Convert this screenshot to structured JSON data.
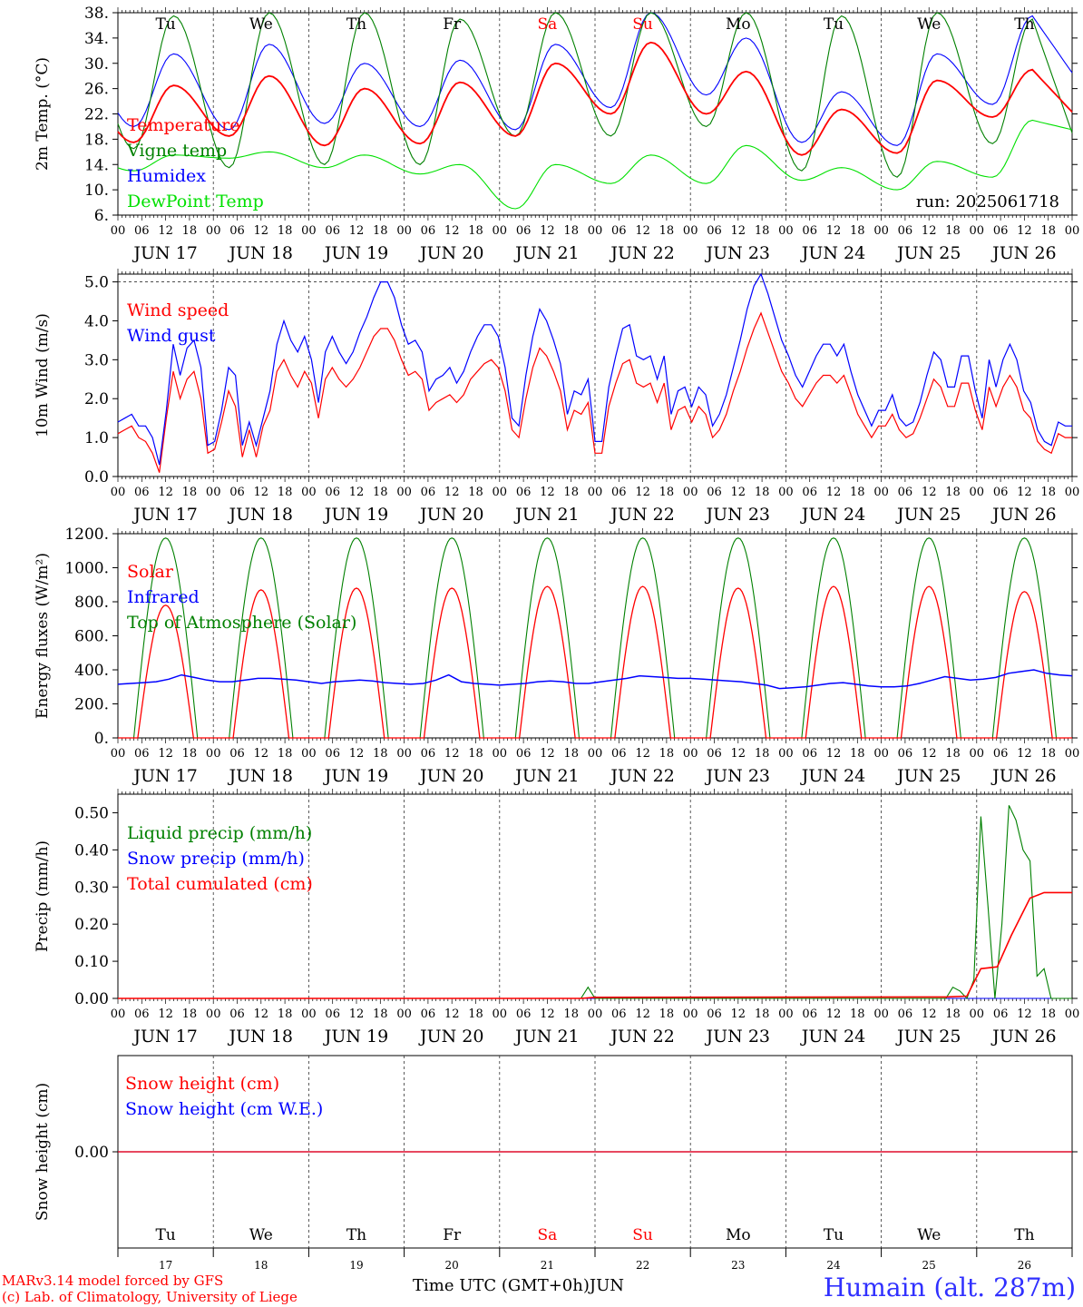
{
  "chart_data": [
    {
      "type": "line",
      "ylabel": "2m Temp. (°C)",
      "ylim": [
        6,
        38
      ],
      "yticks": [
        "6.",
        "10.",
        "14.",
        "18.",
        "22.",
        "26.",
        "30.",
        "34.",
        "38."
      ],
      "ytick_values": [
        6,
        10,
        14,
        18,
        22,
        26,
        30,
        34,
        38
      ],
      "run_label": "run: 2025061718",
      "series": [
        {
          "name": "Temperature",
          "color": "#ff0000",
          "daily_min": [
            17.5,
            18.5,
            17.0,
            17.3,
            18.5,
            22.0,
            22.0,
            15.5,
            15.8,
            21.5
          ],
          "daily_max": [
            26.5,
            28.0,
            26.0,
            27.0,
            30.0,
            33.3,
            28.7,
            22.7,
            27.3,
            29.0
          ],
          "end": 22.3
        },
        {
          "name": "Vigne temp",
          "color": "#008000",
          "daily_min": [
            16.5,
            13.5,
            14.0,
            14.0,
            18.5,
            18.5,
            20.0,
            13.0,
            12.0,
            17.3
          ],
          "daily_max": [
            37.5,
            38.0,
            38.0,
            37.0,
            38.0,
            38.0,
            38.0,
            37.5,
            38.0,
            37.0
          ],
          "end": 19.0
        },
        {
          "name": "Humidex",
          "color": "#0000ff",
          "daily_min": [
            20.0,
            19.5,
            20.5,
            20.0,
            19.5,
            23.0,
            25.0,
            17.5,
            17.0,
            23.5
          ],
          "daily_max": [
            31.5,
            33.0,
            30.0,
            30.5,
            33.0,
            38.0,
            34.0,
            25.5,
            31.5,
            37.5
          ],
          "end": 28.5
        },
        {
          "name": "DewPoint Temp",
          "color": "#00e000",
          "daily_min": [
            13.0,
            15.0,
            13.5,
            12.5,
            7.0,
            11.0,
            11.0,
            11.5,
            10.0,
            12.0
          ],
          "daily_max": [
            15.5,
            16.0,
            15.5,
            14.0,
            14.0,
            15.5,
            17.0,
            13.5,
            14.5,
            21.0
          ],
          "end": 19.5
        }
      ]
    },
    {
      "type": "line",
      "ylabel": "10m Wind (m/s)",
      "ylim": [
        0,
        5.2
      ],
      "yticks": [
        "0.0",
        "1.0",
        "2.0",
        "3.0",
        "4.0",
        "5.0"
      ],
      "ytick_values": [
        0,
        1,
        2,
        3,
        4,
        5
      ],
      "reference_line": 5.0,
      "series": [
        {
          "name": "Wind speed",
          "color": "#ff0000",
          "values": [
            1.1,
            1.2,
            1.3,
            1.0,
            0.9,
            0.6,
            0.1,
            1.5,
            2.7,
            2.0,
            2.5,
            2.7,
            2.0,
            0.6,
            0.7,
            1.4,
            2.2,
            1.8,
            0.5,
            1.2,
            0.5,
            1.3,
            1.7,
            2.7,
            3.0,
            2.6,
            2.3,
            2.7,
            2.4,
            1.5,
            2.5,
            2.8,
            2.5,
            2.3,
            2.5,
            2.8,
            3.2,
            3.6,
            3.8,
            3.8,
            3.5,
            3.0,
            2.6,
            2.7,
            2.5,
            1.7,
            1.9,
            2.0,
            2.1,
            1.9,
            2.1,
            2.5,
            2.7,
            2.9,
            3.0,
            2.8,
            2.2,
            1.2,
            1.0,
            2.0,
            2.8,
            3.3,
            3.1,
            2.7,
            2.2,
            1.2,
            1.7,
            1.6,
            1.9,
            0.6,
            0.6,
            1.8,
            2.4,
            2.9,
            3.0,
            2.4,
            2.3,
            2.4,
            1.9,
            2.4,
            1.2,
            1.7,
            1.8,
            1.4,
            1.8,
            1.6,
            1.0,
            1.2,
            1.6,
            2.2,
            2.7,
            3.3,
            3.8,
            4.2,
            3.7,
            3.2,
            2.7,
            2.4,
            2.0,
            1.8,
            2.1,
            2.4,
            2.6,
            2.6,
            2.4,
            2.6,
            2.1,
            1.6,
            1.3,
            1.0,
            1.3,
            1.3,
            1.6,
            1.2,
            1.0,
            1.1,
            1.5,
            2.0,
            2.5,
            2.3,
            1.8,
            1.8,
            2.4,
            2.4,
            1.7,
            1.2,
            2.3,
            1.8,
            2.3,
            2.6,
            2.3,
            1.7,
            1.5,
            0.9,
            0.7,
            0.6,
            1.1,
            1.0,
            1.0
          ]
        },
        {
          "name": "Wind gust",
          "color": "#0000ff",
          "values": [
            1.4,
            1.5,
            1.6,
            1.3,
            1.3,
            1.0,
            0.3,
            1.7,
            3.4,
            2.6,
            3.3,
            3.5,
            2.8,
            0.8,
            0.9,
            1.7,
            2.8,
            2.6,
            0.8,
            1.4,
            0.8,
            1.5,
            2.2,
            3.4,
            4.0,
            3.5,
            3.2,
            3.6,
            3.0,
            1.9,
            3.2,
            3.6,
            3.2,
            2.9,
            3.2,
            3.7,
            4.1,
            4.6,
            5.0,
            5.0,
            4.6,
            3.9,
            3.4,
            3.5,
            3.2,
            2.2,
            2.5,
            2.6,
            2.8,
            2.4,
            2.7,
            3.2,
            3.6,
            3.9,
            3.9,
            3.6,
            2.8,
            1.5,
            1.3,
            2.6,
            3.6,
            4.3,
            4.0,
            3.5,
            2.9,
            1.6,
            2.2,
            2.1,
            2.5,
            0.9,
            0.9,
            2.3,
            3.1,
            3.8,
            3.9,
            3.1,
            3.0,
            3.1,
            2.5,
            3.1,
            1.6,
            2.2,
            2.3,
            1.8,
            2.3,
            2.1,
            1.3,
            1.6,
            2.1,
            2.8,
            3.5,
            4.3,
            4.9,
            5.4,
            4.7,
            4.1,
            3.5,
            3.1,
            2.6,
            2.3,
            2.7,
            3.1,
            3.4,
            3.4,
            3.1,
            3.4,
            2.7,
            2.1,
            1.7,
            1.3,
            1.7,
            1.7,
            2.1,
            1.5,
            1.3,
            1.4,
            1.9,
            2.6,
            3.2,
            3.0,
            2.3,
            2.3,
            3.1,
            3.1,
            2.2,
            1.5,
            3.0,
            2.3,
            3.0,
            3.4,
            3.0,
            2.2,
            1.9,
            1.2,
            0.9,
            0.8,
            1.4,
            1.3,
            1.3
          ]
        }
      ]
    },
    {
      "type": "line",
      "ylabel": "Energy fluxes (W/m²)",
      "ylim": [
        0,
        1200
      ],
      "yticks": [
        "0.",
        "200.",
        "400.",
        "600.",
        "800.",
        "1000.",
        "1200."
      ],
      "ytick_values": [
        0,
        200,
        400,
        600,
        800,
        1000,
        1200
      ],
      "series": [
        {
          "name": "Solar",
          "color": "#ff0000",
          "daily_peak": [
            780,
            870,
            880,
            880,
            890,
            890,
            880,
            890,
            890,
            860
          ]
        },
        {
          "name": "Infrared",
          "color": "#0000ff",
          "values": [
            315,
            320,
            325,
            330,
            345,
            370,
            355,
            340,
            330,
            330,
            340,
            350,
            350,
            345,
            340,
            330,
            320,
            330,
            335,
            340,
            335,
            325,
            320,
            315,
            320,
            340,
            370,
            330,
            320,
            315,
            310,
            315,
            320,
            330,
            335,
            330,
            320,
            320,
            330,
            340,
            350,
            365,
            360,
            355,
            350,
            350,
            345,
            340,
            335,
            330,
            320,
            310,
            290,
            295,
            300,
            310,
            320,
            325,
            315,
            305,
            300,
            300,
            305,
            320,
            340,
            360,
            350,
            340,
            345,
            355,
            380,
            390,
            400,
            380,
            370,
            365
          ]
        },
        {
          "name": "Top of Atmosphere (Solar)",
          "color": "#008000",
          "daily_peak": [
            1175,
            1175,
            1175,
            1175,
            1175,
            1175,
            1175,
            1175,
            1175,
            1175
          ]
        }
      ]
    },
    {
      "type": "line",
      "ylabel": "Precip (mm/h)",
      "ylim": [
        0,
        0.55
      ],
      "yticks": [
        "0.00",
        "0.10",
        "0.20",
        "0.30",
        "0.40",
        "0.50"
      ],
      "ytick_values": [
        0,
        0.1,
        0.2,
        0.3,
        0.4,
        0.5
      ],
      "series": [
        {
          "name": "Liquid precip (mm/h)",
          "color": "#008000",
          "points": [
            [
              0,
              0
            ],
            [
              198,
              0
            ],
            [
              201,
              0.03
            ],
            [
              204,
              0
            ],
            [
              354,
              0
            ],
            [
              357,
              0.03
            ],
            [
              360,
              0.02
            ],
            [
              363,
              0
            ],
            [
              366,
              0.05
            ],
            [
              369,
              0.49
            ],
            [
              372,
              0.25
            ],
            [
              375,
              0.0
            ],
            [
              378,
              0.2
            ],
            [
              381,
              0.52
            ],
            [
              384,
              0.48
            ],
            [
              387,
              0.4
            ],
            [
              390,
              0.37
            ],
            [
              393,
              0.06
            ],
            [
              396,
              0.08
            ],
            [
              399,
              0
            ],
            [
              408,
              0
            ]
          ]
        },
        {
          "name": "Snow precip (mm/h)",
          "color": "#0000ff",
          "points": [
            [
              0,
              0
            ],
            [
              408,
              0
            ]
          ]
        },
        {
          "name": "Total cumulated (cm)",
          "color": "#ff0000",
          "points": [
            [
              0,
              0
            ],
            [
              198,
              0
            ],
            [
              204,
              0.003
            ],
            [
              354,
              0.004
            ],
            [
              363,
              0.006
            ],
            [
              369,
              0.08
            ],
            [
              376,
              0.085
            ],
            [
              382,
              0.17
            ],
            [
              390,
              0.27
            ],
            [
              396,
              0.285
            ],
            [
              408,
              0.285
            ]
          ]
        }
      ]
    },
    {
      "type": "line",
      "ylabel": "Snow height (cm)",
      "yticks": [
        "0.00"
      ],
      "ytick_values": [
        0
      ],
      "series": [
        {
          "name": "Snow height (cm)",
          "color": "#ff0000",
          "values": [
            0,
            0
          ]
        },
        {
          "name": "Snow height (cm W.E.)",
          "color": "#0000ff",
          "values": [
            0,
            0
          ]
        }
      ]
    }
  ],
  "x_axis": {
    "hour_labels": [
      "00",
      "06",
      "12",
      "18"
    ],
    "end_label": "00",
    "dates": [
      "JUN 17",
      "JUN 18",
      "JUN 19",
      "JUN 20",
      "JUN 21",
      "JUN 22",
      "JUN 23",
      "JUN 24",
      "JUN 25",
      "JUN 26"
    ],
    "weekdays": [
      "Tu",
      "We",
      "Th",
      "Fr",
      "Sa",
      "Su",
      "Mo",
      "Tu",
      "We",
      "Th"
    ],
    "weekend_color": "#ff0000",
    "weekend_index": [
      4,
      5
    ],
    "day_numbers": [
      "17",
      "18",
      "19",
      "20",
      "21",
      "22",
      "23",
      "24",
      "25",
      "26"
    ],
    "title": "Time UTC (GMT+0h)",
    "month": "JUN"
  },
  "footer": {
    "line1": "MARv3.14 model forced by GFS",
    "line2": "(c) Lab. of Climatology, University of Liege",
    "station": "Humain (alt. 287m)"
  }
}
